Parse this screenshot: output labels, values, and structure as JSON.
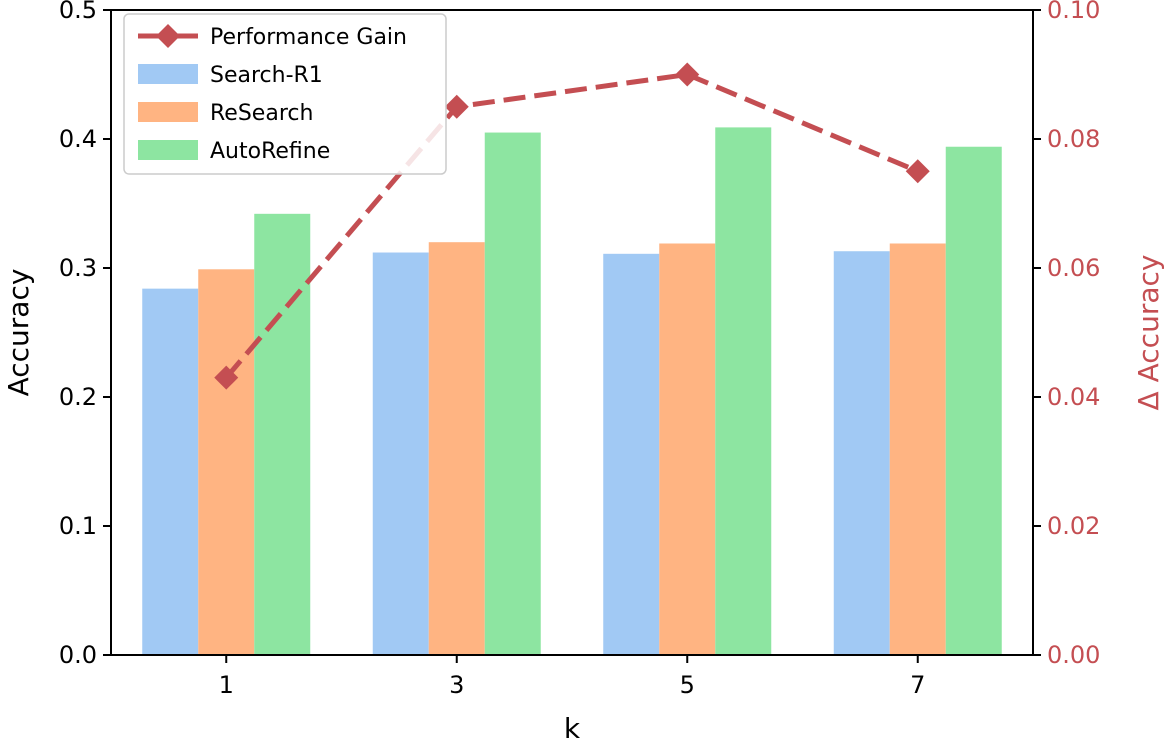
{
  "chart_data": {
    "type": "bar",
    "categories": [
      "1",
      "3",
      "5",
      "7"
    ],
    "xlabel": "k",
    "ylabel": "Accuracy",
    "y2label": "Δ Accuracy",
    "ylim": [
      0.0,
      0.5
    ],
    "y2lim": [
      0.0,
      0.1
    ],
    "yticks": [
      "0.0",
      "0.1",
      "0.2",
      "0.3",
      "0.4",
      "0.5"
    ],
    "y2ticks": [
      "0.00",
      "0.02",
      "0.04",
      "0.06",
      "0.08",
      "0.10"
    ],
    "grid": false,
    "legend_position": "top-left",
    "series": [
      {
        "name": "Search-R1",
        "color": "#a1c9f4",
        "values": [
          0.284,
          0.312,
          0.311,
          0.313
        ]
      },
      {
        "name": "ReSearch",
        "color": "#ffb482",
        "values": [
          0.299,
          0.32,
          0.319,
          0.319
        ]
      },
      {
        "name": "AutoRefine",
        "color": "#8de5a1",
        "values": [
          0.342,
          0.405,
          0.409,
          0.394
        ]
      }
    ],
    "line_series": {
      "name": "Performance Gain",
      "color": "#c44e52",
      "axis": "right",
      "style": "dashed",
      "marker": "diamond",
      "values": [
        0.043,
        0.085,
        0.09,
        0.075
      ]
    }
  }
}
